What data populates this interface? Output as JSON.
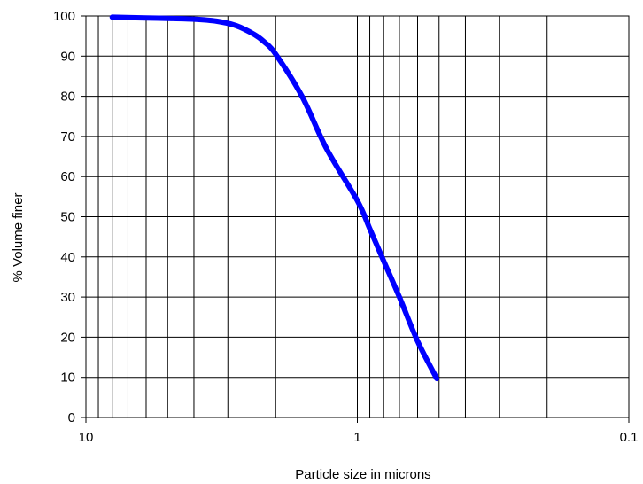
{
  "chart_data": {
    "type": "line",
    "title": "",
    "xlabel": "Particle size in microns",
    "ylabel": "% Volume finer",
    "x_scale": "log",
    "x_reversed": true,
    "xlim": [
      10,
      0.1
    ],
    "ylim": [
      0,
      100
    ],
    "grid": true,
    "legend": "none",
    "x_ticks": [
      {
        "value": 10,
        "label": "10"
      },
      {
        "value": 1,
        "label": "1"
      },
      {
        "value": 0.1,
        "label": "0.1"
      }
    ],
    "y_ticks": [
      {
        "value": 0,
        "label": "0"
      },
      {
        "value": 10,
        "label": "10"
      },
      {
        "value": 20,
        "label": "20"
      },
      {
        "value": 30,
        "label": "30"
      },
      {
        "value": 40,
        "label": "40"
      },
      {
        "value": 50,
        "label": "50"
      },
      {
        "value": 60,
        "label": "60"
      },
      {
        "value": 70,
        "label": "70"
      },
      {
        "value": 80,
        "label": "80"
      },
      {
        "value": 90,
        "label": "90"
      },
      {
        "value": 100,
        "label": "100"
      }
    ],
    "series": [
      {
        "color": "#0000ff",
        "points": [
          {
            "x": 8.0,
            "y": 99.7
          },
          {
            "x": 6.0,
            "y": 99.5
          },
          {
            "x": 5.0,
            "y": 99.4
          },
          {
            "x": 4.0,
            "y": 99.2
          },
          {
            "x": 3.3,
            "y": 98.7
          },
          {
            "x": 2.8,
            "y": 97.6
          },
          {
            "x": 2.4,
            "y": 95.4
          },
          {
            "x": 2.2,
            "y": 93.5
          },
          {
            "x": 2.0,
            "y": 90.5
          },
          {
            "x": 1.6,
            "y": 80.0
          },
          {
            "x": 1.3,
            "y": 67.0
          },
          {
            "x": 1.0,
            "y": 54.0
          },
          {
            "x": 0.9,
            "y": 47.0
          },
          {
            "x": 0.8,
            "y": 39.0
          },
          {
            "x": 0.7,
            "y": 30.0
          },
          {
            "x": 0.6,
            "y": 19.0
          },
          {
            "x": 0.51,
            "y": 9.7
          }
        ]
      }
    ]
  }
}
